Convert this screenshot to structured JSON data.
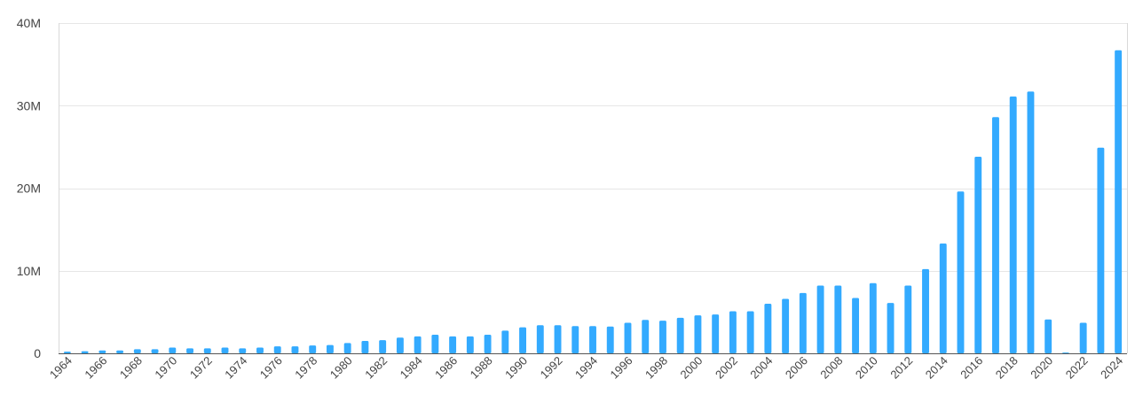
{
  "chart_data": {
    "type": "bar",
    "title": "",
    "xlabel": "",
    "ylabel": "",
    "ylim": [
      0,
      40000000
    ],
    "y_ticks": [
      0,
      10000000,
      20000000,
      30000000,
      40000000
    ],
    "y_tick_labels": [
      "0",
      "10M",
      "20M",
      "30M",
      "40M"
    ],
    "grid": true,
    "bar_color": "#33aaff",
    "categories": [
      "1964",
      "1965",
      "1966",
      "1967",
      "1968",
      "1969",
      "1970",
      "1971",
      "1972",
      "1973",
      "1974",
      "1975",
      "1976",
      "1977",
      "1978",
      "1979",
      "1980",
      "1981",
      "1982",
      "1983",
      "1984",
      "1985",
      "1986",
      "1987",
      "1988",
      "1989",
      "1990",
      "1991",
      "1992",
      "1993",
      "1994",
      "1995",
      "1996",
      "1997",
      "1998",
      "1999",
      "2000",
      "2001",
      "2002",
      "2003",
      "2004",
      "2005",
      "2006",
      "2007",
      "2008",
      "2009",
      "2010",
      "2011",
      "2012",
      "2013",
      "2014",
      "2015",
      "2016",
      "2017",
      "2018",
      "2019",
      "2020",
      "2021",
      "2022",
      "2023",
      "2024"
    ],
    "x_tick_labels": [
      "1964",
      "1966",
      "1968",
      "1970",
      "1972",
      "1974",
      "1976",
      "1978",
      "1980",
      "1982",
      "1984",
      "1986",
      "1988",
      "1990",
      "1992",
      "1994",
      "1996",
      "1998",
      "2000",
      "2002",
      "2004",
      "2006",
      "2008",
      "2010",
      "2012",
      "2014",
      "2016",
      "2018",
      "2020",
      "2022",
      "2024"
    ],
    "values": [
      200000,
      250000,
      350000,
      350000,
      500000,
      500000,
      700000,
      600000,
      600000,
      700000,
      600000,
      700000,
      850000,
      850000,
      950000,
      1000000,
      1250000,
      1500000,
      1600000,
      1900000,
      2050000,
      2250000,
      2050000,
      2050000,
      2250000,
      2750000,
      3150000,
      3400000,
      3400000,
      3300000,
      3300000,
      3250000,
      3700000,
      4050000,
      3950000,
      4300000,
      4600000,
      4700000,
      5100000,
      5100000,
      6000000,
      6600000,
      7300000,
      8200000,
      8200000,
      6700000,
      8500000,
      6100000,
      8200000,
      10200000,
      13300000,
      19600000,
      23800000,
      28600000,
      31100000,
      31700000,
      4100000,
      100000,
      3700000,
      24900000,
      36700000
    ]
  }
}
